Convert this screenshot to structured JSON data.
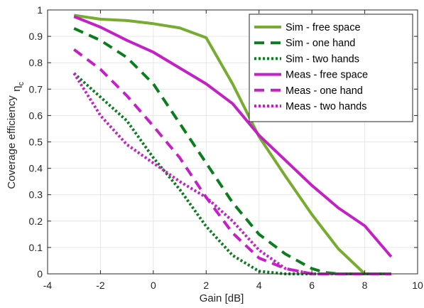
{
  "chart_data": {
    "type": "line",
    "title": "",
    "xlabel": "Gain [dB]",
    "ylabel": "Coverage efficiency",
    "ylabel_symbol": "η",
    "ylabel_symbol_sub": "c",
    "xlim": [
      -4,
      10
    ],
    "ylim": [
      0,
      1
    ],
    "xticks": [
      -4,
      -2,
      0,
      2,
      4,
      6,
      8,
      10
    ],
    "yticks": [
      0,
      0.1,
      0.2,
      0.3,
      0.4,
      0.5,
      0.6,
      0.7,
      0.8,
      0.9,
      1
    ],
    "grid": true,
    "legend_position": "top-right",
    "series": [
      {
        "name": "Sim - free space",
        "color": "#77ac30",
        "dash": "solid",
        "x": [
          -3,
          -2,
          -1,
          0,
          1,
          2,
          3,
          4,
          5,
          6,
          7,
          8,
          9
        ],
        "y": [
          0.98,
          0.965,
          0.96,
          0.948,
          0.932,
          0.895,
          0.72,
          0.52,
          0.37,
          0.225,
          0.095,
          0.0,
          0.0
        ]
      },
      {
        "name": "Sim - one hand",
        "color": "#0c7d1f",
        "dash": "dashed",
        "x": [
          -3,
          -2,
          -1,
          0,
          1,
          2,
          3,
          4,
          5,
          6,
          6.5,
          7,
          8,
          9
        ],
        "y": [
          0.93,
          0.885,
          0.82,
          0.72,
          0.57,
          0.42,
          0.27,
          0.15,
          0.075,
          0.02,
          0.005,
          0.0,
          0.0,
          0.0
        ]
      },
      {
        "name": "Sim - two hands",
        "color": "#0c7d1f",
        "dash": "dotted",
        "x": [
          -3,
          -2,
          -1,
          0,
          1,
          2,
          3,
          4,
          5,
          6,
          7,
          8,
          9
        ],
        "y": [
          0.76,
          0.67,
          0.58,
          0.44,
          0.32,
          0.18,
          0.07,
          0.01,
          0.0,
          0.0,
          0.0,
          0.0,
          0.0
        ]
      },
      {
        "name": "Meas - free space",
        "color": "#c321c4",
        "dash": "solid",
        "x": [
          -3,
          -2,
          -1,
          0,
          1,
          2,
          3,
          4,
          5,
          6,
          7,
          8,
          9
        ],
        "y": [
          0.975,
          0.935,
          0.885,
          0.84,
          0.78,
          0.72,
          0.645,
          0.525,
          0.43,
          0.335,
          0.25,
          0.182,
          0.065
        ]
      },
      {
        "name": "Meas - one hand",
        "color": "#c321c4",
        "dash": "dashed",
        "x": [
          -3,
          -2,
          -1,
          0,
          1,
          2,
          3,
          4,
          5,
          6,
          7,
          8,
          9
        ],
        "y": [
          0.85,
          0.775,
          0.675,
          0.56,
          0.44,
          0.29,
          0.155,
          0.06,
          0.02,
          0.0,
          0.0,
          0.0,
          0.0
        ]
      },
      {
        "name": "Meas - two hands",
        "color": "#c321c4",
        "dash": "dotted",
        "x": [
          -3,
          -2,
          -1,
          0,
          1,
          2,
          3,
          4,
          5,
          6,
          7,
          8,
          9
        ],
        "y": [
          0.76,
          0.6,
          0.49,
          0.42,
          0.35,
          0.29,
          0.2,
          0.09,
          0.02,
          0.0,
          0.0,
          0.0,
          0.0
        ]
      }
    ]
  }
}
